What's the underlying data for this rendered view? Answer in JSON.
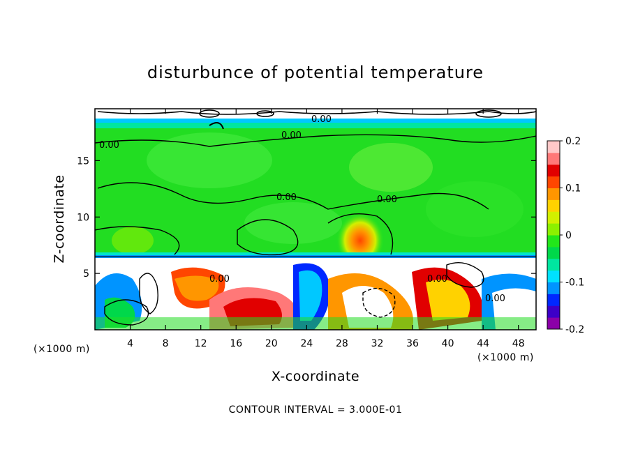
{
  "chart_data": {
    "type": "heatmap",
    "title": "disturbunce of potential temperature",
    "xlabel": "X-coordinate",
    "ylabel": "Z-coordinate",
    "x_unit": "(×1000 m)",
    "z_unit": "(×1000 m)",
    "xlim": [
      0,
      50
    ],
    "ylim": [
      0,
      19.6
    ],
    "x_ticks": [
      4,
      8,
      12,
      16,
      20,
      24,
      28,
      32,
      36,
      40,
      44,
      48
    ],
    "y_ticks": [
      5,
      10,
      15
    ],
    "colorbar": {
      "range": [
        -0.2,
        0.2
      ],
      "ticks": [
        "0.2",
        "0.1",
        "0",
        "-0.1",
        "-0.2"
      ],
      "colors": [
        "#8b00a8",
        "#3c00c8",
        "#0028ff",
        "#0094ff",
        "#00e1ff",
        "#00e6a0",
        "#00d84a",
        "#22e61a",
        "#8cf000",
        "#d2f000",
        "#ffd200",
        "#ff9600",
        "#ff4600",
        "#e10000",
        "#ff7878",
        "#ffc8c8"
      ]
    },
    "contour_labels": [
      "0.00",
      "0.00",
      "0.00",
      "0.00",
      "0.00",
      "0.00",
      "0.00",
      "0.00"
    ],
    "footer": "CONTOUR INTERVAL = 3.000E-01"
  }
}
